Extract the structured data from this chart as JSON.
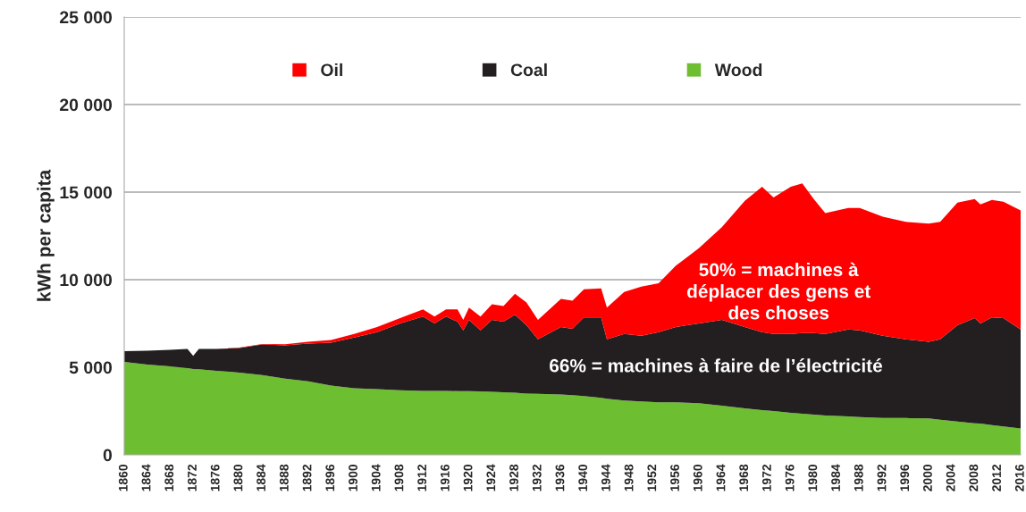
{
  "chart_data": {
    "type": "area",
    "stacked": true,
    "ylabel": "kWh per capita",
    "x": [
      1860,
      1864,
      1868,
      1871,
      1872,
      1873,
      1876,
      1880,
      1884,
      1888,
      1892,
      1896,
      1900,
      1904,
      1908,
      1912,
      1914,
      1916,
      1918,
      1919,
      1920,
      1922,
      1924,
      1926,
      1928,
      1930,
      1932,
      1936,
      1938,
      1940,
      1943,
      1944,
      1947,
      1950,
      1953,
      1956,
      1960,
      1964,
      1968,
      1971,
      1973,
      1976,
      1978,
      1980,
      1982,
      1986,
      1988,
      1992,
      1996,
      2000,
      2002,
      2005,
      2008,
      2009,
      2011,
      2013,
      2016
    ],
    "series": [
      {
        "name": "Wood",
        "color": "#6ebe32",
        "values": [
          5300,
          5150,
          5050,
          4950,
          4900,
          4880,
          4800,
          4700,
          4550,
          4350,
          4200,
          3950,
          3800,
          3750,
          3680,
          3650,
          3650,
          3650,
          3640,
          3640,
          3630,
          3620,
          3600,
          3570,
          3550,
          3500,
          3480,
          3450,
          3400,
          3350,
          3250,
          3200,
          3100,
          3050,
          3000,
          3000,
          2950,
          2800,
          2650,
          2550,
          2500,
          2400,
          2350,
          2300,
          2250,
          2200,
          2150,
          2100,
          2100,
          2080,
          2000,
          1900,
          1800,
          1780,
          1700,
          1620,
          1500
        ]
      },
      {
        "name": "Coal",
        "color": "#231f20",
        "values": [
          620,
          800,
          950,
          1100,
          750,
          1170,
          1250,
          1400,
          1750,
          1900,
          2150,
          2450,
          2900,
          3250,
          3820,
          4250,
          3850,
          4250,
          3960,
          3460,
          4070,
          3480,
          4100,
          4030,
          4450,
          3900,
          3120,
          3850,
          3800,
          4500,
          4600,
          3400,
          3800,
          3750,
          4000,
          4300,
          4550,
          4900,
          4650,
          4450,
          4400,
          4500,
          4600,
          4650,
          4650,
          4950,
          4950,
          4700,
          4500,
          4370,
          4600,
          5500,
          6000,
          5720,
          6150,
          6180,
          5650
        ]
      },
      {
        "name": "Oil",
        "color": "#ff0000",
        "values": [
          0,
          0,
          0,
          0,
          0,
          0,
          0,
          20,
          30,
          70,
          100,
          150,
          200,
          300,
          300,
          400,
          400,
          400,
          700,
          600,
          700,
          800,
          900,
          900,
          1200,
          1300,
          1100,
          1600,
          1600,
          1600,
          1650,
          1800,
          2400,
          2800,
          2800,
          3500,
          4300,
          5300,
          7200,
          8300,
          7800,
          8400,
          8550,
          7650,
          6900,
          6950,
          7000,
          6800,
          6700,
          6750,
          6700,
          7000,
          6800,
          6800,
          6700,
          6650,
          6800
        ]
      }
    ],
    "xlim": [
      1860,
      2016
    ],
    "xticks": [
      1860,
      1864,
      1868,
      1872,
      1876,
      1880,
      1884,
      1888,
      1892,
      1896,
      1900,
      1904,
      1908,
      1912,
      1916,
      1920,
      1924,
      1928,
      1932,
      1936,
      1940,
      1944,
      1948,
      1952,
      1956,
      1960,
      1964,
      1968,
      1972,
      1976,
      1980,
      1984,
      1988,
      1992,
      1996,
      2000,
      2004,
      2008,
      2012,
      2016
    ],
    "ylim": [
      0,
      25000
    ],
    "yticks": [
      {
        "value": 0,
        "label": "0"
      },
      {
        "value": 5000,
        "label": "5 000"
      },
      {
        "value": 10000,
        "label": "10 000"
      },
      {
        "value": 15000,
        "label": "15 000"
      },
      {
        "value": 20000,
        "label": "20 000"
      },
      {
        "value": 25000,
        "label": "25 000"
      }
    ],
    "grid": "y",
    "legend": "top",
    "annotations": [
      "50% = machines à\ndéplacer des gens et\ndes choses",
      "66% = machines à faire de l’électricité"
    ]
  }
}
